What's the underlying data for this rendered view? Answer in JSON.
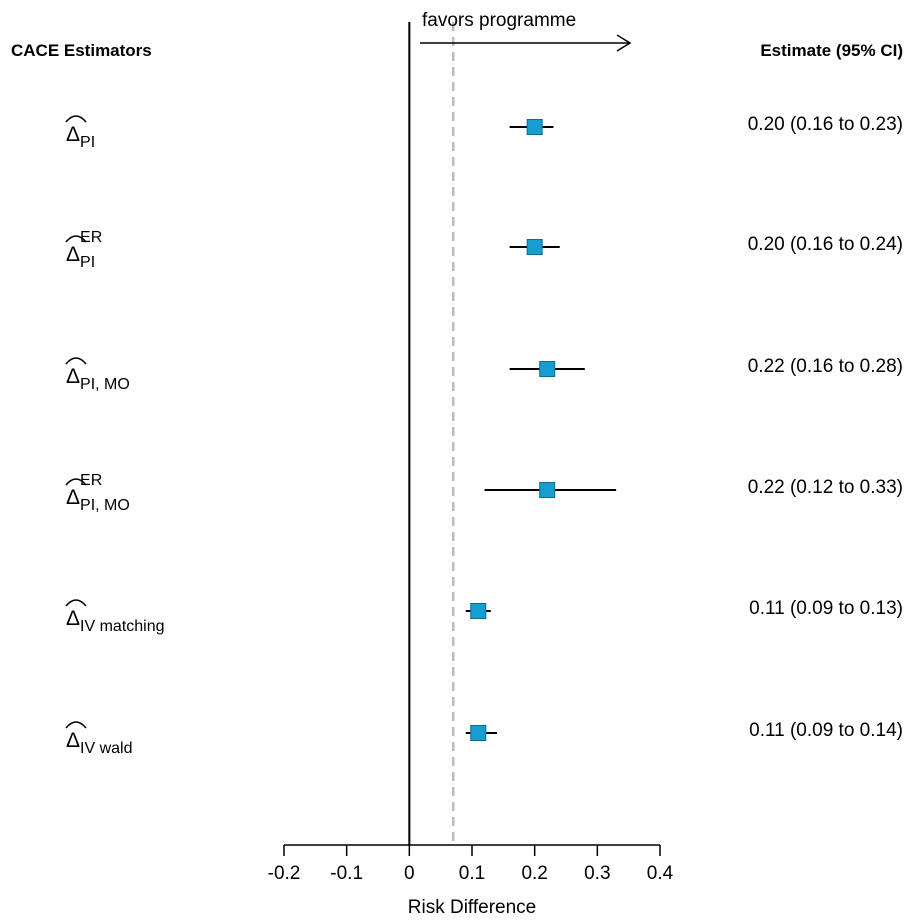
{
  "header": {
    "left": "CACE Estimators",
    "right": "Estimate (95% CI)"
  },
  "annotation": {
    "text": "favors programme"
  },
  "rows": [
    {
      "symbol": "Δ",
      "sub": "PI",
      "sup": "",
      "estimate": "0.20 (0.16 to 0.23)"
    },
    {
      "symbol": "Δ",
      "sub": "PI",
      "sup": "ER",
      "estimate": "0.20 (0.16 to 0.24)"
    },
    {
      "symbol": "Δ",
      "sub": "PI, MO",
      "sup": "",
      "estimate": "0.22 (0.16 to 0.28)"
    },
    {
      "symbol": "Δ",
      "sub": "PI, MO",
      "sup": "ER",
      "estimate": "0.22 (0.12 to 0.33)"
    },
    {
      "symbol": "Δ",
      "sub": "IV matching",
      "sup": "",
      "estimate": "0.11 (0.09 to 0.13)"
    },
    {
      "symbol": "Δ",
      "sub": "IV wald",
      "sup": "",
      "estimate": "0.11 (0.09 to 0.14)"
    }
  ],
  "colors": {
    "marker": "#159ecf",
    "reference_line": "#000000",
    "dashed_line": "#bbbbbb"
  },
  "chart_data": {
    "type": "forest",
    "xlabel": "Risk Difference",
    "xlim": [
      -0.2,
      0.4
    ],
    "xticks": [
      -0.2,
      -0.1,
      0,
      0.1,
      0.2,
      0.3,
      0.4
    ],
    "xtick_labels": [
      "-0.2",
      "-0.1",
      "0",
      "0.1",
      "0.2",
      "0.3",
      "0.4"
    ],
    "null_line": 0,
    "dashed_reference": 0.07,
    "points": [
      {
        "estimate": 0.2,
        "lower": 0.16,
        "upper": 0.23
      },
      {
        "estimate": 0.2,
        "lower": 0.16,
        "upper": 0.24
      },
      {
        "estimate": 0.22,
        "lower": 0.16,
        "upper": 0.28
      },
      {
        "estimate": 0.22,
        "lower": 0.12,
        "upper": 0.33
      },
      {
        "estimate": 0.11,
        "lower": 0.09,
        "upper": 0.13
      },
      {
        "estimate": 0.11,
        "lower": 0.09,
        "upper": 0.14
      }
    ]
  }
}
